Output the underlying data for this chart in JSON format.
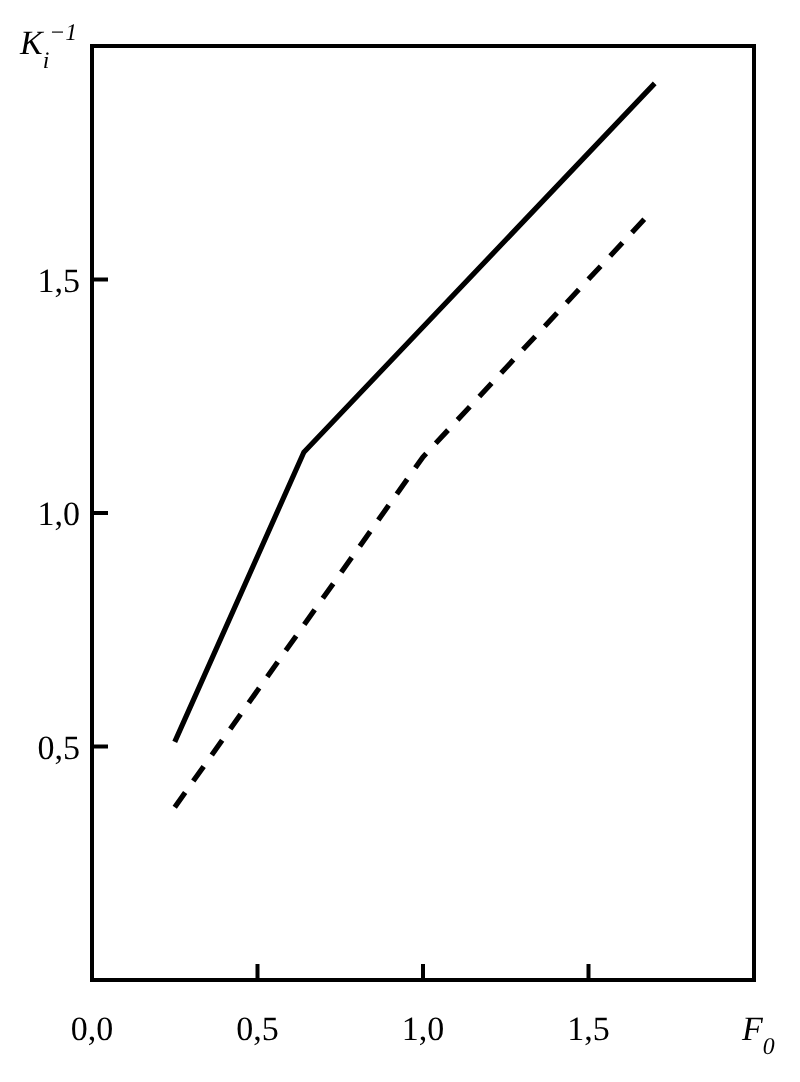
{
  "chart_data": {
    "type": "line",
    "xlabel": "F$_{0}$",
    "ylabel": "K$_{i}$$^{−1}$",
    "xlim": [
      0,
      2
    ],
    "ylim": [
      0,
      2
    ],
    "xticks": [
      {
        "value": 0,
        "label": "0,0"
      },
      {
        "value": 0.5,
        "label": "0,5"
      },
      {
        "value": 1,
        "label": "1,0"
      },
      {
        "value": 1.5,
        "label": "1,5"
      }
    ],
    "yticks": [
      {
        "value": 0.5,
        "label": "0,5"
      },
      {
        "value": 1,
        "label": "1,0"
      },
      {
        "value": 1.5,
        "label": "1,5"
      }
    ],
    "grid": false,
    "marker": "none",
    "series": [
      {
        "color": "#000000",
        "line_style": "solid",
        "x": [
          0.25,
          0.64,
          1.7
        ],
        "values": [
          0.51,
          1.13,
          1.92
        ]
      },
      {
        "color": "#000000",
        "line_style": "dashed",
        "x": [
          0.25,
          1.0,
          1.67
        ],
        "values": [
          0.37,
          1.12,
          1.63
        ]
      }
    ]
  }
}
